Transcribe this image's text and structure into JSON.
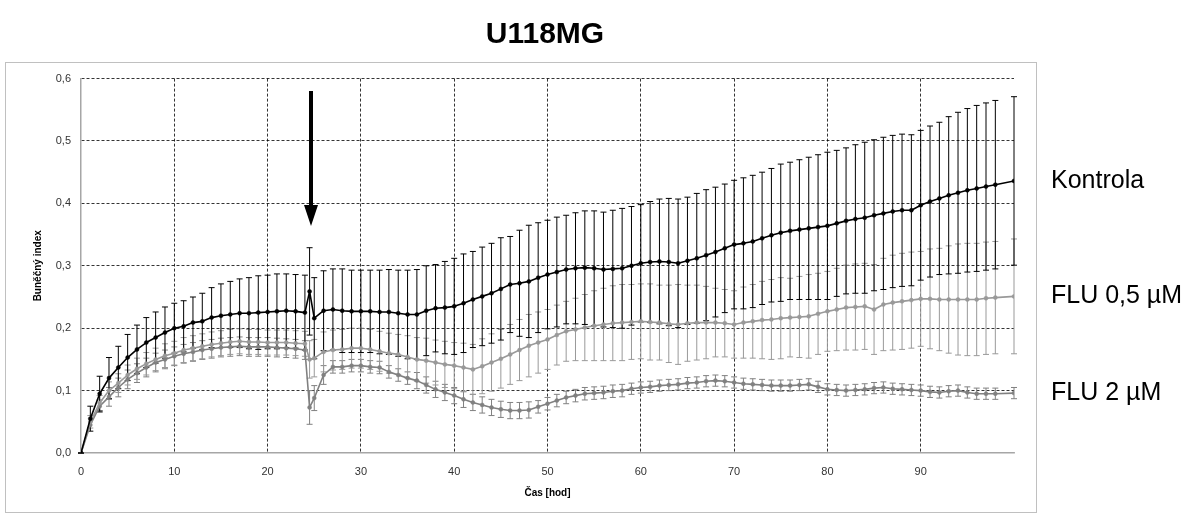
{
  "chart_data": {
    "type": "line",
    "title": "U118MG",
    "xlabel": "Čas [hod]",
    "ylabel": "Buněčný index",
    "x": [
      0,
      1,
      2,
      3,
      4,
      5,
      6,
      7,
      8,
      9,
      10,
      11,
      12,
      13,
      14,
      15,
      16,
      17,
      18,
      19,
      20,
      21,
      22,
      23,
      24,
      24.5,
      25,
      26,
      27,
      28,
      29,
      30,
      31,
      32,
      33,
      34,
      35,
      36,
      37,
      38,
      39,
      40,
      41,
      42,
      43,
      44,
      45,
      46,
      47,
      48,
      49,
      50,
      51,
      52,
      53,
      54,
      55,
      56,
      57,
      58,
      59,
      60,
      61,
      62,
      63,
      64,
      65,
      66,
      67,
      68,
      69,
      70,
      71,
      72,
      73,
      74,
      75,
      76,
      77,
      78,
      79,
      80,
      81,
      82,
      83,
      84,
      85,
      86,
      87,
      88,
      89,
      90,
      91,
      92,
      93,
      94,
      95,
      96,
      97,
      98,
      100
    ],
    "xlim": [
      0,
      100
    ],
    "xticks": [
      0,
      10,
      20,
      30,
      40,
      50,
      60,
      70,
      80,
      90
    ],
    "ylim": [
      0,
      0.6
    ],
    "yticks": [
      {
        "value": 0,
        "label": "0,0"
      },
      {
        "value": 0.1,
        "label": "0,1"
      },
      {
        "value": 0.2,
        "label": "0,2"
      },
      {
        "value": 0.3,
        "label": "0,3"
      },
      {
        "value": 0.4,
        "label": "0,4"
      },
      {
        "value": 0.5,
        "label": "0,5"
      },
      {
        "value": 0.6,
        "label": "0,6"
      }
    ],
    "grid": true,
    "marker": "circle",
    "series": [
      {
        "name": "Kontrola",
        "color": "#000000",
        "values": [
          0,
          0.055,
          0.095,
          0.12,
          0.137,
          0.153,
          0.166,
          0.177,
          0.185,
          0.193,
          0.2,
          0.203,
          0.209,
          0.211,
          0.217,
          0.22,
          0.222,
          0.224,
          0.224,
          0.225,
          0.226,
          0.227,
          0.228,
          0.227,
          0.225,
          0.259,
          0.216,
          0.228,
          0.23,
          0.228,
          0.227,
          0.227,
          0.227,
          0.226,
          0.226,
          0.224,
          0.222,
          0.222,
          0.228,
          0.232,
          0.233,
          0.235,
          0.24,
          0.246,
          0.251,
          0.256,
          0.263,
          0.27,
          0.272,
          0.275,
          0.281,
          0.286,
          0.29,
          0.294,
          0.296,
          0.297,
          0.296,
          0.294,
          0.295,
          0.296,
          0.3,
          0.304,
          0.306,
          0.307,
          0.306,
          0.304,
          0.308,
          0.312,
          0.317,
          0.322,
          0.328,
          0.334,
          0.336,
          0.339,
          0.344,
          0.349,
          0.353,
          0.356,
          0.358,
          0.36,
          0.362,
          0.364,
          0.368,
          0.372,
          0.375,
          0.377,
          0.381,
          0.384,
          0.387,
          0.389,
          0.389,
          0.397,
          0.403,
          0.408,
          0.413,
          0.417,
          0.421,
          0.424,
          0.427,
          0.43,
          0.436
        ],
        "errors": [
          0,
          0.02,
          0.028,
          0.033,
          0.034,
          0.037,
          0.039,
          0.04,
          0.041,
          0.041,
          0.04,
          0.041,
          0.041,
          0.045,
          0.048,
          0.051,
          0.053,
          0.055,
          0.057,
          0.059,
          0.059,
          0.06,
          0.059,
          0.059,
          0.06,
          0.07,
          0.065,
          0.064,
          0.065,
          0.067,
          0.066,
          0.066,
          0.066,
          0.067,
          0.068,
          0.069,
          0.071,
          0.072,
          0.072,
          0.07,
          0.074,
          0.077,
          0.079,
          0.077,
          0.079,
          0.08,
          0.082,
          0.077,
          0.085,
          0.09,
          0.088,
          0.087,
          0.088,
          0.087,
          0.089,
          0.091,
          0.092,
          0.092,
          0.094,
          0.096,
          0.095,
          0.094,
          0.097,
          0.1,
          0.102,
          0.103,
          0.102,
          0.104,
          0.105,
          0.104,
          0.103,
          0.103,
          0.105,
          0.106,
          0.106,
          0.107,
          0.11,
          0.11,
          0.112,
          0.114,
          0.116,
          0.118,
          0.117,
          0.117,
          0.119,
          0.121,
          0.121,
          0.122,
          0.122,
          0.122,
          0.121,
          0.12,
          0.121,
          0.122,
          0.126,
          0.129,
          0.131,
          0.133,
          0.134,
          0.135,
          0.135
        ]
      },
      {
        "name": "FLU 0,5 µM",
        "color": "#999999",
        "values": [
          0,
          0.05,
          0.08,
          0.1,
          0.112,
          0.125,
          0.135,
          0.143,
          0.15,
          0.156,
          0.16,
          0.165,
          0.168,
          0.171,
          0.174,
          0.176,
          0.178,
          0.179,
          0.178,
          0.178,
          0.177,
          0.177,
          0.177,
          0.176,
          0.175,
          0.15,
          0.152,
          0.162,
          0.165,
          0.166,
          0.168,
          0.168,
          0.166,
          0.163,
          0.16,
          0.158,
          0.154,
          0.15,
          0.148,
          0.145,
          0.142,
          0.14,
          0.137,
          0.134,
          0.139,
          0.145,
          0.151,
          0.158,
          0.165,
          0.172,
          0.177,
          0.182,
          0.189,
          0.195,
          0.198,
          0.201,
          0.204,
          0.206,
          0.208,
          0.209,
          0.21,
          0.211,
          0.21,
          0.209,
          0.207,
          0.206,
          0.208,
          0.209,
          0.209,
          0.209,
          0.208,
          0.206,
          0.209,
          0.211,
          0.213,
          0.214,
          0.216,
          0.217,
          0.218,
          0.219,
          0.223,
          0.227,
          0.23,
          0.233,
          0.234,
          0.235,
          0.23,
          0.238,
          0.241,
          0.243,
          0.245,
          0.247,
          0.247,
          0.246,
          0.246,
          0.246,
          0.246,
          0.246,
          0.248,
          0.249,
          0.251
        ],
        "errors": [
          0,
          0.01,
          0.012,
          0.014,
          0.015,
          0.016,
          0.017,
          0.018,
          0.018,
          0.019,
          0.019,
          0.02,
          0.02,
          0.02,
          0.02,
          0.02,
          0.02,
          0.02,
          0.02,
          0.02,
          0.02,
          0.02,
          0.02,
          0.02,
          0.02,
          0.03,
          0.03,
          0.032,
          0.032,
          0.032,
          0.032,
          0.032,
          0.032,
          0.032,
          0.032,
          0.032,
          0.034,
          0.035,
          0.036,
          0.036,
          0.037,
          0.037,
          0.039,
          0.04,
          0.044,
          0.046,
          0.047,
          0.048,
          0.049,
          0.05,
          0.049,
          0.048,
          0.048,
          0.048,
          0.05,
          0.053,
          0.056,
          0.058,
          0.06,
          0.061,
          0.06,
          0.06,
          0.061,
          0.06,
          0.062,
          0.064,
          0.061,
          0.06,
          0.058,
          0.055,
          0.054,
          0.054,
          0.057,
          0.059,
          0.062,
          0.064,
          0.065,
          0.063,
          0.065,
          0.067,
          0.065,
          0.064,
          0.066,
          0.068,
          0.069,
          0.069,
          0.072,
          0.074,
          0.076,
          0.077,
          0.077,
          0.076,
          0.08,
          0.082,
          0.086,
          0.089,
          0.09,
          0.09,
          0.09,
          0.09,
          0.092
        ]
      },
      {
        "name": "FLU 2 µM",
        "color": "#808080",
        "values": [
          0,
          0.045,
          0.075,
          0.09,
          0.105,
          0.118,
          0.128,
          0.137,
          0.145,
          0.15,
          0.155,
          0.159,
          0.162,
          0.165,
          0.167,
          0.169,
          0.17,
          0.171,
          0.17,
          0.17,
          0.17,
          0.169,
          0.168,
          0.167,
          0.165,
          0.073,
          0.088,
          0.125,
          0.138,
          0.138,
          0.14,
          0.14,
          0.138,
          0.137,
          0.13,
          0.125,
          0.12,
          0.116,
          0.109,
          0.102,
          0.097,
          0.092,
          0.086,
          0.081,
          0.077,
          0.073,
          0.07,
          0.068,
          0.068,
          0.069,
          0.074,
          0.079,
          0.084,
          0.089,
          0.092,
          0.095,
          0.096,
          0.097,
          0.099,
          0.1,
          0.103,
          0.105,
          0.106,
          0.108,
          0.109,
          0.11,
          0.112,
          0.113,
          0.115,
          0.116,
          0.115,
          0.113,
          0.111,
          0.11,
          0.109,
          0.108,
          0.108,
          0.108,
          0.109,
          0.11,
          0.106,
          0.102,
          0.101,
          0.1,
          0.101,
          0.102,
          0.104,
          0.105,
          0.103,
          0.102,
          0.101,
          0.1,
          0.098,
          0.097,
          0.099,
          0.1,
          0.097,
          0.095,
          0.095,
          0.095,
          0.096
        ],
        "errors": [
          0,
          null,
          0.01,
          0.015,
          0.015,
          0.015,
          0.015,
          0.015,
          0.015,
          0.015,
          0.015,
          0.015,
          0.015,
          0.015,
          0.015,
          0.015,
          0.015,
          0.015,
          0.015,
          0.015,
          0.015,
          0.015,
          0.015,
          0.015,
          0.015,
          0.027,
          0.02,
          0.015,
          0.01,
          0.01,
          0.01,
          0.01,
          0.01,
          0.01,
          0.01,
          0.01,
          0.01,
          0.013,
          0.013,
          0.013,
          0.013,
          0.013,
          0.013,
          0.013,
          0.013,
          0.013,
          0.013,
          0.013,
          0.013,
          0.013,
          0.01,
          0.01,
          0.01,
          0.01,
          0.01,
          0.01,
          0.01,
          0.01,
          0.01,
          0.01,
          0.009,
          0.009,
          0.009,
          0.009,
          0.009,
          0.009,
          0.009,
          0.009,
          0.009,
          0.009,
          0.009,
          0.009,
          0.009,
          0.009,
          0.009,
          0.009,
          0.009,
          0.009,
          0.009,
          0.009,
          0.009,
          0.009,
          0.009,
          0.009,
          0.009,
          0.009,
          0.009,
          0.009,
          0.009,
          0.009,
          0.009,
          0.009,
          0.009,
          0.009,
          0.009,
          0.009,
          0.009,
          0.009,
          0.009,
          0.009,
          0.009
        ]
      }
    ]
  }
}
